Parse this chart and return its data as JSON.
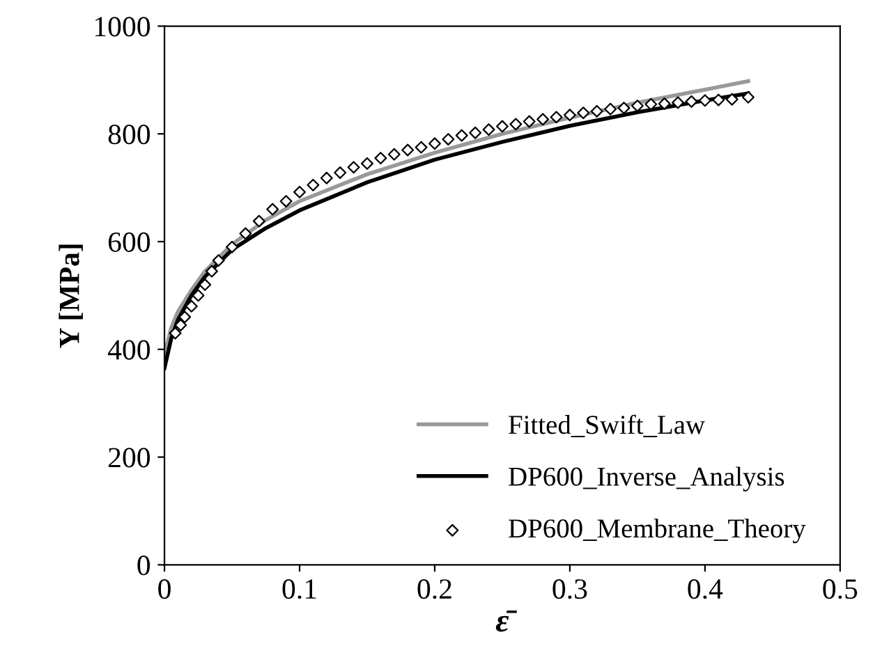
{
  "chart_data": {
    "type": "line",
    "xlabel": "ε̄",
    "ylabel": "Y [MPa]",
    "xlim": [
      0,
      0.5
    ],
    "ylim": [
      0,
      1000
    ],
    "xticks": [
      0,
      0.1,
      0.2,
      0.3,
      0.4,
      0.5
    ],
    "yticks": [
      0,
      200,
      400,
      600,
      800,
      1000
    ],
    "grid": false,
    "legend": "bottom right",
    "series": [
      {
        "name": "Fitted_Swift_Law",
        "color": "#999999",
        "marker": "none",
        "x": [
          0,
          0.005,
          0.01,
          0.02,
          0.03,
          0.05,
          0.075,
          0.1,
          0.15,
          0.2,
          0.25,
          0.3,
          0.35,
          0.4,
          0.432
        ],
        "values": [
          390,
          440,
          470,
          510,
          545,
          595,
          640,
          675,
          725,
          765,
          800,
          830,
          858,
          882,
          898
        ]
      },
      {
        "name": "DP600_Inverse_Analysis",
        "color": "#000000",
        "marker": "none",
        "x": [
          0,
          0.005,
          0.01,
          0.02,
          0.03,
          0.05,
          0.075,
          0.1,
          0.15,
          0.2,
          0.25,
          0.3,
          0.35,
          0.4,
          0.432
        ],
        "values": [
          365,
          420,
          455,
          500,
          535,
          585,
          625,
          658,
          710,
          752,
          785,
          815,
          840,
          862,
          875
        ]
      },
      {
        "name": "DP600_Membrane_Theory",
        "type": "scatter",
        "color": "#000000",
        "marker": "diamond",
        "x": [
          0.008,
          0.012,
          0.015,
          0.02,
          0.025,
          0.03,
          0.035,
          0.04,
          0.05,
          0.06,
          0.07,
          0.08,
          0.09,
          0.1,
          0.11,
          0.12,
          0.13,
          0.14,
          0.15,
          0.16,
          0.17,
          0.18,
          0.19,
          0.2,
          0.21,
          0.22,
          0.23,
          0.24,
          0.25,
          0.26,
          0.27,
          0.28,
          0.29,
          0.3,
          0.31,
          0.32,
          0.33,
          0.34,
          0.35,
          0.36,
          0.37,
          0.38,
          0.39,
          0.4,
          0.41,
          0.42,
          0.432
        ],
        "values": [
          430,
          445,
          460,
          480,
          500,
          520,
          545,
          565,
          590,
          615,
          638,
          660,
          675,
          692,
          705,
          718,
          728,
          738,
          745,
          755,
          762,
          770,
          775,
          782,
          790,
          797,
          802,
          808,
          814,
          818,
          823,
          827,
          831,
          835,
          839,
          842,
          846,
          848,
          852,
          855,
          856,
          858,
          860,
          862,
          863,
          864,
          868
        ]
      }
    ]
  }
}
